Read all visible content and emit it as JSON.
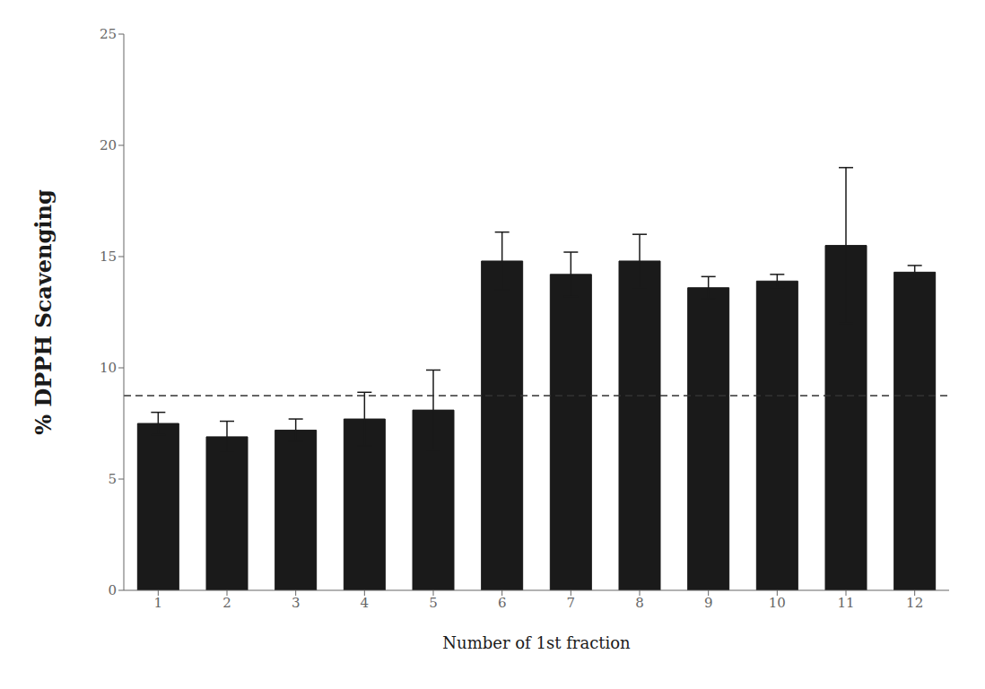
{
  "chart_data": {
    "type": "bar",
    "xlabel": "Number of 1st fraction",
    "ylabel": "% DPPH Scavenging",
    "categories": [
      "1",
      "2",
      "3",
      "4",
      "5",
      "6",
      "7",
      "8",
      "9",
      "10",
      "11",
      "12"
    ],
    "values": [
      7.5,
      6.9,
      7.2,
      7.7,
      8.1,
      14.8,
      14.2,
      14.8,
      13.6,
      13.9,
      15.5,
      14.3
    ],
    "errors": [
      0.5,
      0.7,
      0.5,
      1.2,
      1.8,
      1.3,
      1.0,
      1.2,
      0.5,
      0.3,
      3.5,
      0.3
    ],
    "color": "#1a1a1a",
    "ylim": [
      0,
      25
    ],
    "yticks": [
      0,
      5,
      10,
      15,
      20,
      25
    ],
    "reference_line": {
      "y": 8.75,
      "color": "#333333",
      "line_style": "dashed"
    },
    "grid": false
  }
}
